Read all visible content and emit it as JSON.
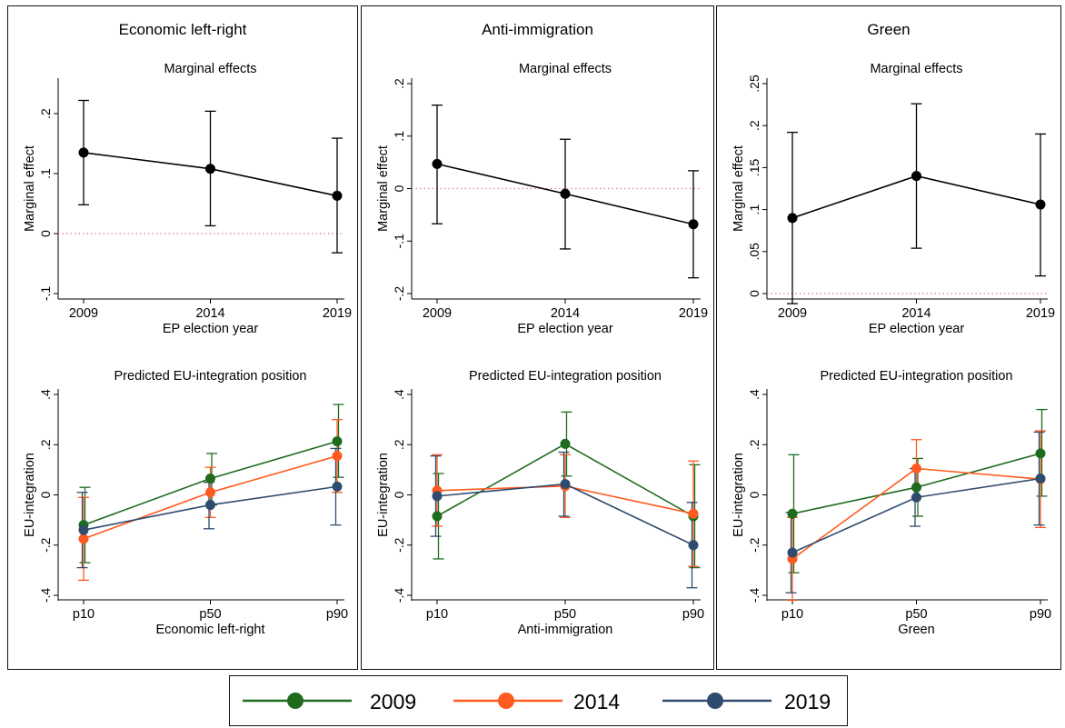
{
  "panels": [
    {
      "title": "Economic left-right",
      "marginal": {
        "subtitle": "Marginal effects",
        "xlabel": "EP election year",
        "ylabel": "Marginal effect",
        "x": [
          "2009",
          "2014",
          "2019"
        ],
        "yticks": [
          -0.1,
          0,
          0.1,
          0.2
        ],
        "yticklabels": [
          "-.1",
          "0",
          ".1",
          ".2"
        ],
        "ylim": [
          -0.1,
          0.25
        ],
        "estimate": [
          0.135,
          0.108,
          0.063
        ],
        "ci_low": [
          0.048,
          0.013,
          -0.032
        ],
        "ci_high": [
          0.222,
          0.204,
          0.159
        ]
      },
      "predicted": {
        "subtitle": "Predicted EU-integration position",
        "xlabel": "Economic left-right",
        "ylabel": "EU-integration",
        "x": [
          "p10",
          "p50",
          "p90"
        ],
        "yticks": [
          -0.4,
          -0.2,
          0,
          0.2,
          0.4
        ],
        "yticklabels": [
          "-.4",
          "-.2",
          "0",
          ".2",
          ".4"
        ],
        "ylim": [
          -0.4,
          0.4
        ],
        "series": [
          {
            "name": "2009",
            "values": [
              -0.12,
              0.065,
              0.213
            ],
            "ci_low": [
              -0.27,
              -0.04,
              0.07
            ],
            "ci_high": [
              0.03,
              0.165,
              0.36
            ]
          },
          {
            "name": "2014",
            "values": [
              -0.175,
              0.01,
              0.155
            ],
            "ci_low": [
              -0.34,
              -0.09,
              0.01
            ],
            "ci_high": [
              -0.01,
              0.11,
              0.3
            ]
          },
          {
            "name": "2019",
            "values": [
              -0.14,
              -0.04,
              0.033
            ],
            "ci_low": [
              -0.29,
              -0.135,
              -0.12
            ],
            "ci_high": [
              0.01,
              0.05,
              0.185
            ]
          }
        ]
      }
    },
    {
      "title": "Anti-immigration",
      "marginal": {
        "subtitle": "Marginal effects",
        "xlabel": "EP election year",
        "ylabel": "Marginal effect",
        "x": [
          "2009",
          "2014",
          "2019"
        ],
        "yticks": [
          -0.2,
          -0.1,
          0,
          0.1,
          0.2
        ],
        "yticklabels": [
          "-.2",
          "-.1",
          "0",
          ".1",
          ".2"
        ],
        "ylim": [
          -0.2,
          0.2
        ],
        "estimate": [
          0.047,
          -0.01,
          -0.068
        ],
        "ci_low": [
          -0.067,
          -0.115,
          -0.17
        ],
        "ci_high": [
          0.159,
          0.094,
          0.034
        ]
      },
      "predicted": {
        "subtitle": "Predicted EU-integration position",
        "xlabel": "Anti-immigration",
        "ylabel": "EU-integration",
        "x": [
          "p10",
          "p50",
          "p90"
        ],
        "yticks": [
          -0.4,
          -0.2,
          0,
          0.2,
          0.4
        ],
        "yticklabels": [
          "-.4",
          "-.2",
          "0",
          ".2",
          ".4"
        ],
        "ylim": [
          -0.4,
          0.4
        ],
        "series": [
          {
            "name": "2009",
            "values": [
              -0.085,
              0.203,
              -0.085
            ],
            "ci_low": [
              -0.255,
              0.075,
              -0.29
            ],
            "ci_high": [
              0.085,
              0.33,
              0.12
            ]
          },
          {
            "name": "2014",
            "values": [
              0.017,
              0.035,
              -0.075
            ],
            "ci_low": [
              -0.125,
              -0.09,
              -0.285
            ],
            "ci_high": [
              0.16,
              0.16,
              0.135
            ]
          },
          {
            "name": "2019",
            "values": [
              -0.005,
              0.043,
              -0.2
            ],
            "ci_low": [
              -0.165,
              -0.085,
              -0.37
            ],
            "ci_high": [
              0.155,
              0.17,
              -0.03
            ]
          }
        ]
      }
    },
    {
      "title": "Green",
      "marginal": {
        "subtitle": "Marginal effects",
        "xlabel": "EP election year",
        "ylabel": "Marginal effect",
        "x": [
          "2009",
          "2014",
          "2019"
        ],
        "yticks": [
          0,
          0.05,
          0.1,
          0.15,
          0.2,
          0.25
        ],
        "yticklabels": [
          "0",
          ".05",
          ".1",
          ".15",
          ".2",
          ".25"
        ],
        "ylim": [
          0,
          0.25
        ],
        "estimate": [
          0.09,
          0.14,
          0.106
        ],
        "ci_low": [
          -0.012,
          0.054,
          0.021
        ],
        "ci_high": [
          0.192,
          0.226,
          0.19
        ]
      },
      "predicted": {
        "subtitle": "Predicted EU-integration position",
        "xlabel": "Green",
        "ylabel": "EU-integration",
        "x": [
          "p10",
          "p50",
          "p90"
        ],
        "yticks": [
          -0.4,
          -0.2,
          0,
          0.2,
          0.4
        ],
        "yticklabels": [
          "-.4",
          "-.2",
          "0",
          ".2",
          ".4"
        ],
        "ylim": [
          -0.4,
          0.4
        ],
        "series": [
          {
            "name": "2009",
            "values": [
              -0.075,
              0.03,
              0.165
            ],
            "ci_low": [
              -0.31,
              -0.085,
              -0.005
            ],
            "ci_high": [
              0.16,
              0.145,
              0.34
            ]
          },
          {
            "name": "2014",
            "values": [
              -0.255,
              0.105,
              0.063
            ],
            "ci_low": [
              -0.42,
              -0.01,
              -0.13
            ],
            "ci_high": [
              -0.09,
              0.22,
              0.255
            ]
          },
          {
            "name": "2019",
            "values": [
              -0.23,
              -0.01,
              0.065
            ],
            "ci_low": [
              -0.39,
              -0.125,
              -0.12
            ],
            "ci_high": [
              -0.07,
              0.105,
              0.25
            ]
          }
        ]
      }
    }
  ],
  "legend": [
    {
      "name": "2009",
      "color": "#1e6b1e"
    },
    {
      "name": "2014",
      "color": "#ff5a1f"
    },
    {
      "name": "2019",
      "color": "#2f4b6e"
    }
  ],
  "colors": {
    "marginal_line": "#000000",
    "reference_line": "#e87a7a"
  }
}
